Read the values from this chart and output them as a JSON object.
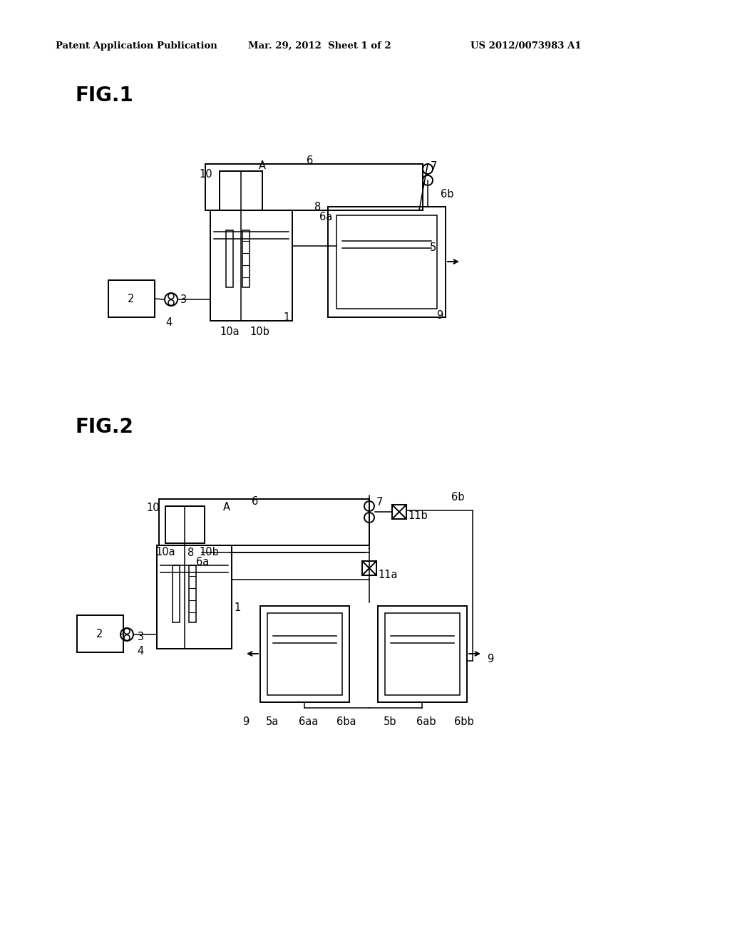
{
  "bg_color": "#ffffff",
  "header_left": "Patent Application Publication",
  "header_mid": "Mar. 29, 2012  Sheet 1 of 2",
  "header_right": "US 2012/0073983 A1",
  "fig1_label": "FIG.1",
  "fig2_label": "FIG.2"
}
